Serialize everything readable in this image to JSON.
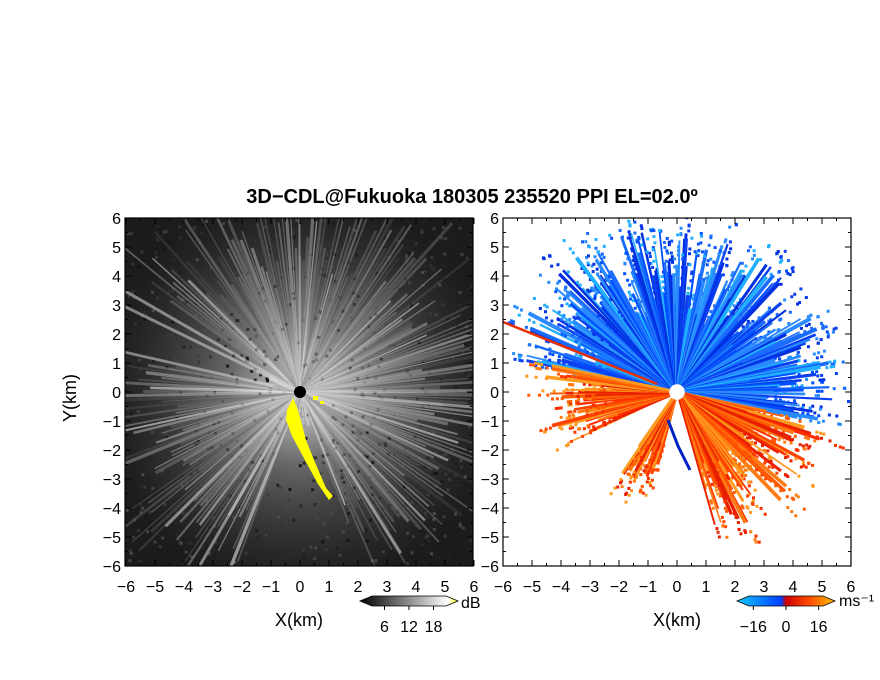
{
  "title": "3D−CDL@Fukuoka 180305 235520 PPI EL=02.0º",
  "chart_data": [
    {
      "type": "heatmap",
      "field": "backscatter intensity",
      "xlabel": "X(km)",
      "ylabel": "Y(km)",
      "xlim": [
        -6,
        6
      ],
      "ylim": [
        -6,
        6
      ],
      "xticks": [
        "−6",
        "−5",
        "−4",
        "−3",
        "−2",
        "−1",
        "0",
        "1",
        "2",
        "3",
        "4",
        "5",
        "6"
      ],
      "yticks": [
        "−6",
        "−5",
        "−4",
        "−3",
        "−2",
        "−1",
        "0",
        "1",
        "2",
        "3",
        "4",
        "5",
        "6"
      ],
      "colorbar": {
        "unit": "dB",
        "ticks": [
          6,
          12,
          18
        ],
        "tick_labels": [
          "6",
          "12",
          "18"
        ],
        "range": [
          0,
          24
        ],
        "colors": [
          "#000000",
          "#ffffff",
          "#ffff00"
        ]
      }
    },
    {
      "type": "heatmap",
      "field": "radial velocity",
      "xlabel": "X(km)",
      "xlim": [
        -6,
        6
      ],
      "ylim": [
        -6,
        6
      ],
      "xticks": [
        "−6",
        "−5",
        "−4",
        "−3",
        "−2",
        "−1",
        "0",
        "1",
        "2",
        "3",
        "4",
        "5",
        "6"
      ],
      "yticks": [
        "−6",
        "−5",
        "−4",
        "−3",
        "−2",
        "−1",
        "0",
        "1",
        "2",
        "3",
        "4",
        "5",
        "6"
      ],
      "colorbar": {
        "unit": "ms⁻¹",
        "ticks": [
          -16,
          0,
          16
        ],
        "tick_labels": [
          "−16",
          "0",
          "16"
        ],
        "range": [
          -24,
          24
        ],
        "colors": [
          "#10c8ff",
          "#0050ff",
          "#e00000",
          "#ff6000",
          "#ffb000"
        ]
      },
      "scan_sectors": [
        {
          "az_from": 280,
          "az_to": 360,
          "r_max": 5.8,
          "velocity": "toward"
        },
        {
          "az_from": 0,
          "az_to": 102,
          "r_max": 5.4,
          "velocity": "toward"
        },
        {
          "az_from": 102,
          "az_to": 165,
          "r_max": 5.2,
          "velocity": "away"
        },
        {
          "az_from": 195,
          "az_to": 215,
          "r_max": 3.4,
          "velocity": "away"
        },
        {
          "az_from": 245,
          "az_to": 282,
          "r_max": 4.6,
          "velocity": "away"
        }
      ]
    }
  ]
}
